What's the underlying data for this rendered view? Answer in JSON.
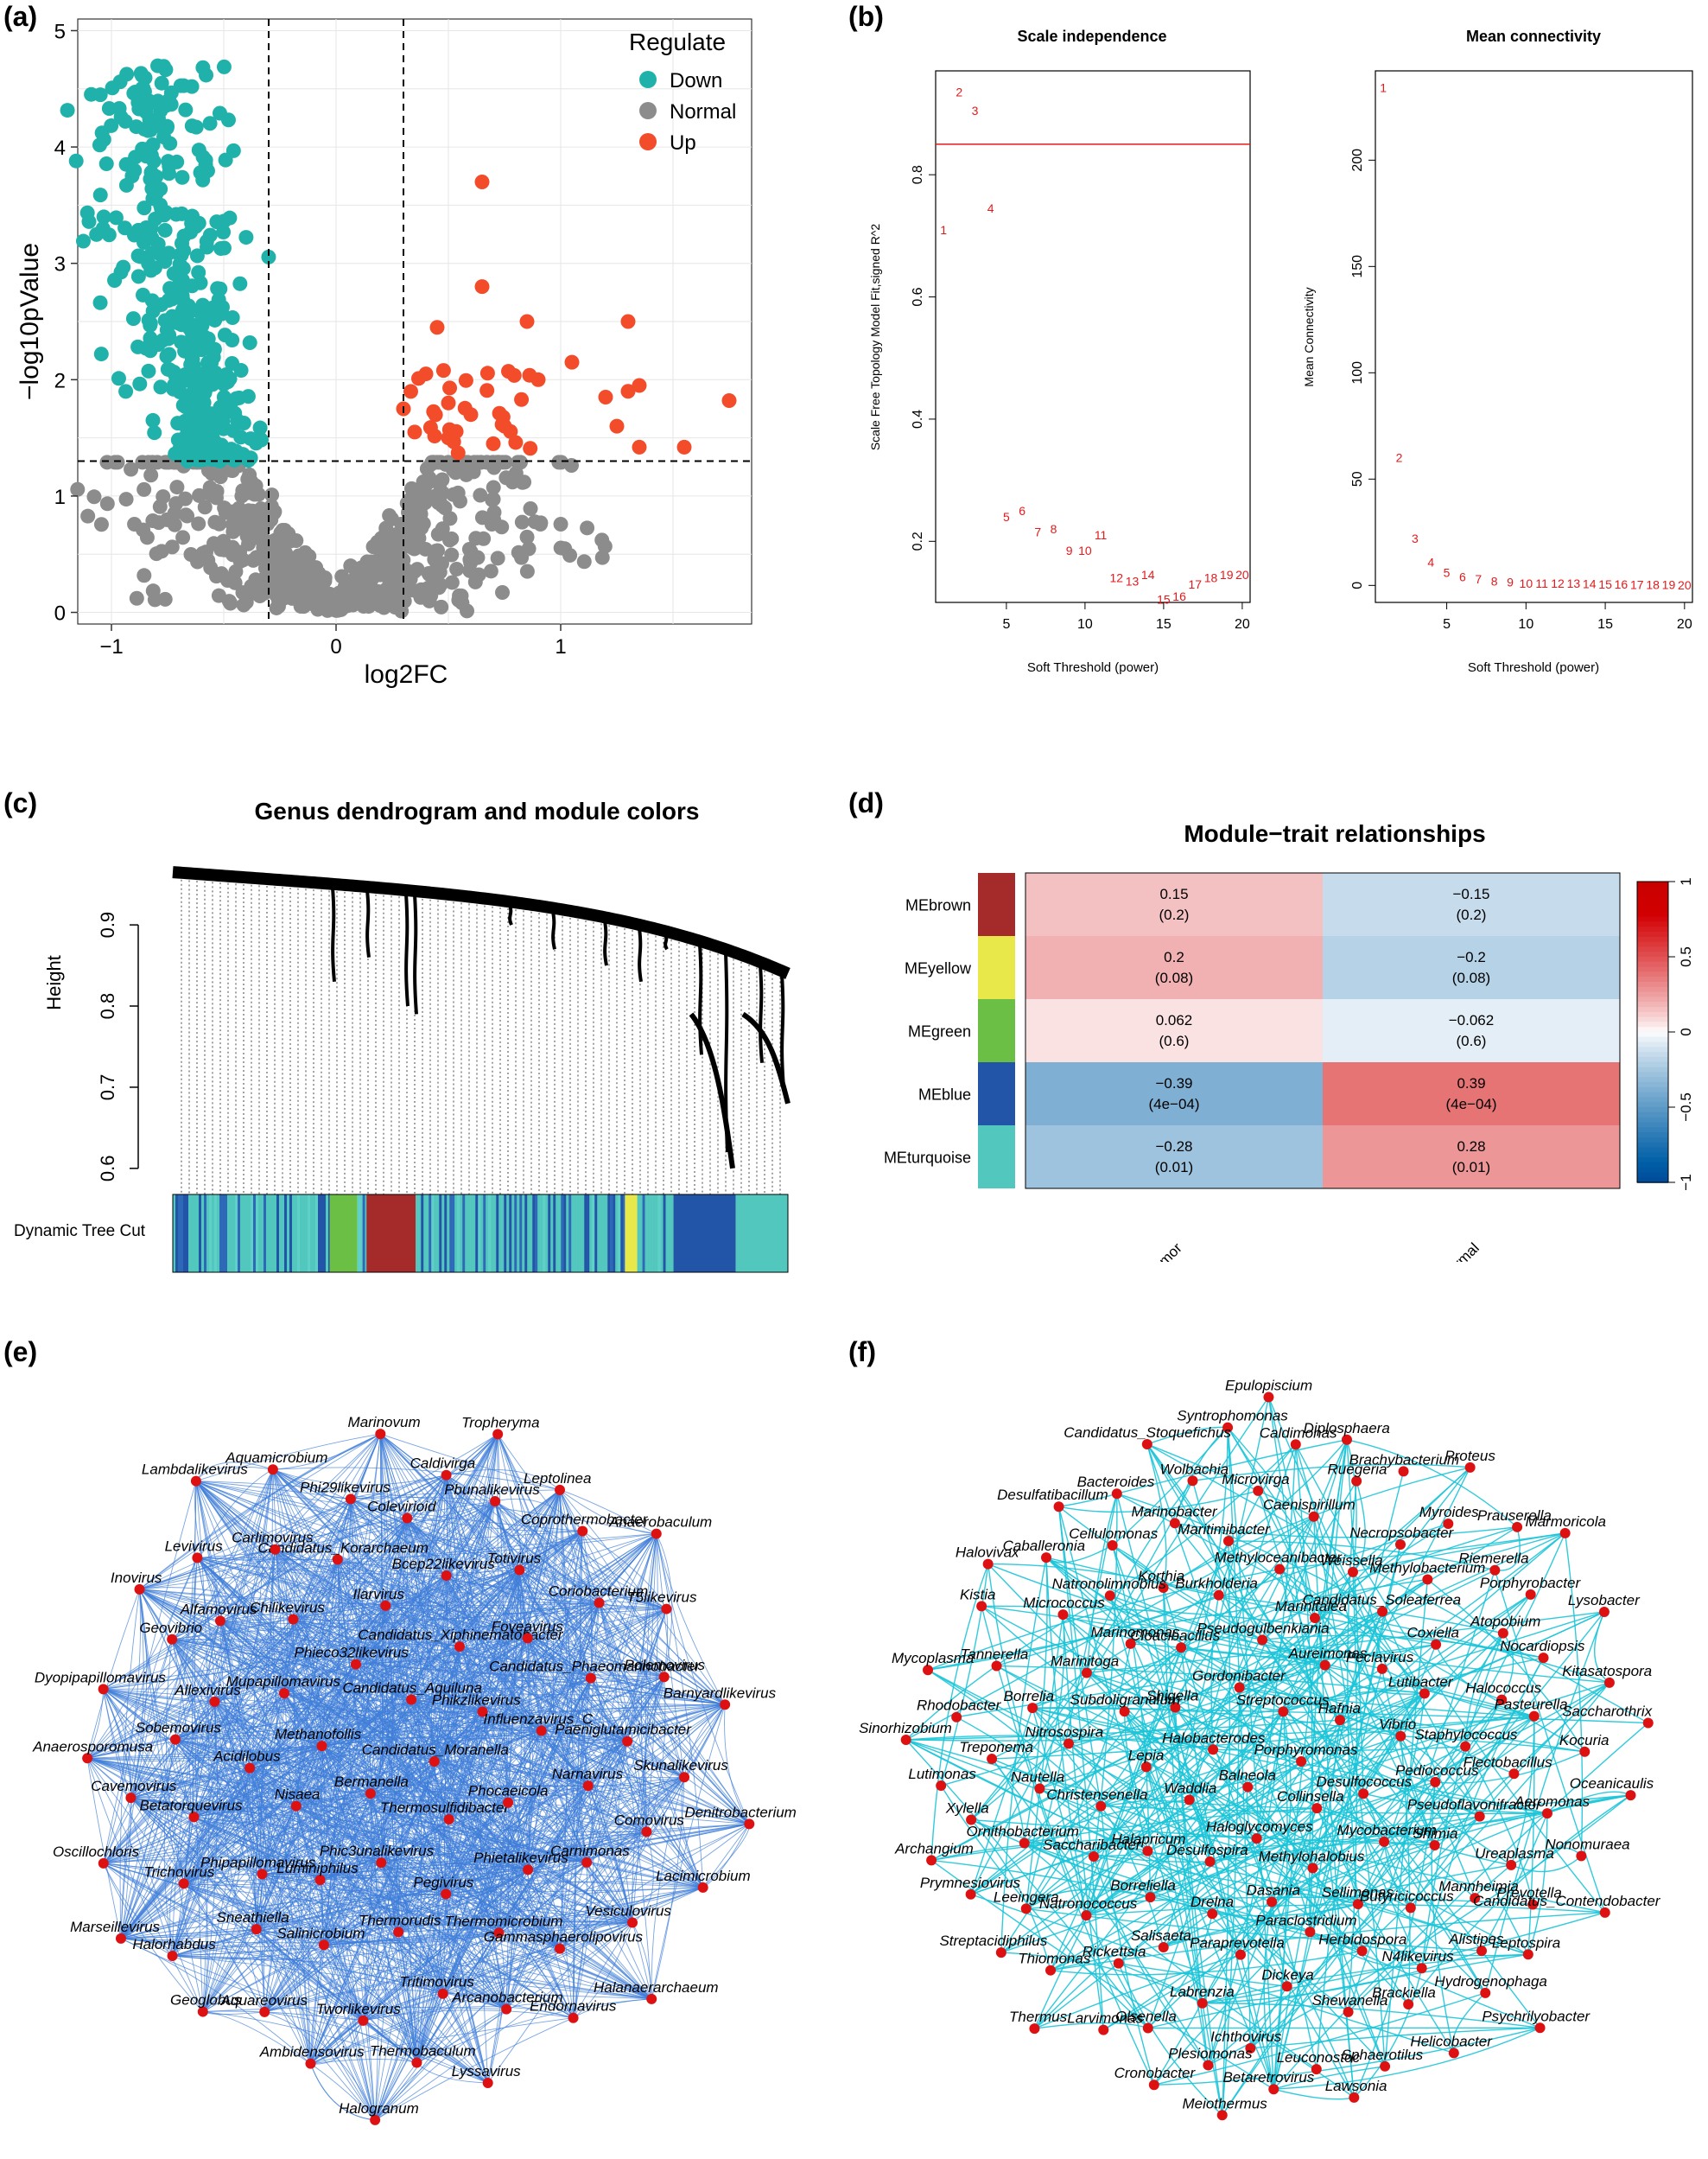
{
  "panels": {
    "a": "(a)",
    "b": "(b)",
    "c": "(c)",
    "d": "(d)",
    "e": "(e)",
    "f": "(f)"
  },
  "colors": {
    "down": "#20B2AA",
    "normal": "#8C8C8C",
    "up": "#F24C2A",
    "sft_red": "#E31A1C",
    "net_e_edge": "#3E7DD8",
    "net_f_edge": "#19C4D8",
    "node": "#DD1111",
    "hm_neg": "#2C7BB6",
    "hm_pos": "#D7191C"
  },
  "chart_data": [
    {
      "id": "a",
      "type": "scatter",
      "xlabel": "log2FC",
      "ylabel": "−log10pValue",
      "xlim": [
        -1.15,
        1.85
      ],
      "ylim": [
        -0.1,
        5.1
      ],
      "xticks": [
        -1,
        0,
        1
      ],
      "xtick_labels": [
        "−1",
        "0",
        "1"
      ],
      "yticks": [
        0,
        1,
        2,
        3,
        4,
        5
      ],
      "ytick_labels": [
        "0",
        "1",
        "2",
        "3",
        "4",
        "5"
      ],
      "thresholds": {
        "x": [
          -0.3,
          0.3
        ],
        "y": 1.3
      },
      "legend": {
        "title": "Regulate",
        "entries": [
          "Down",
          "Normal",
          "Up"
        ],
        "position": "top-right"
      },
      "points_summary": {
        "down_count_est": 420,
        "normal_count_est": 650,
        "up_count_est": 48
      },
      "up_points": [
        [
          0.65,
          3.7
        ],
        [
          0.65,
          2.8
        ],
        [
          1.3,
          2.5
        ],
        [
          0.85,
          2.5
        ],
        [
          0.45,
          2.45
        ],
        [
          1.05,
          2.15
        ],
        [
          0.4,
          2.05
        ],
        [
          0.9,
          2.0
        ],
        [
          1.35,
          1.95
        ],
        [
          1.3,
          1.9
        ],
        [
          1.75,
          1.82
        ],
        [
          1.2,
          1.85
        ],
        [
          0.5,
          1.8
        ],
        [
          0.3,
          1.75
        ],
        [
          0.6,
          1.7
        ],
        [
          1.25,
          1.6
        ],
        [
          0.75,
          1.6
        ],
        [
          1.55,
          1.42
        ],
        [
          1.35,
          1.42
        ],
        [
          0.7,
          1.45
        ],
        [
          0.5,
          1.5
        ],
        [
          0.35,
          1.55
        ]
      ]
    },
    {
      "id": "b1",
      "type": "scatter",
      "title": "Scale independence",
      "xlabel": "Soft Threshold (power)",
      "ylabel": "Scale Free Topology Model Fit,signed R^2",
      "xlim": [
        0.5,
        20.5
      ],
      "ylim": [
        0.1,
        0.97
      ],
      "xticks": [
        5,
        10,
        15,
        20
      ],
      "yticks": [
        0.2,
        0.4,
        0.6,
        0.8
      ],
      "cutoff": 0.85,
      "x": [
        1,
        2,
        3,
        4,
        5,
        6,
        7,
        8,
        9,
        10,
        11,
        12,
        13,
        14,
        15,
        16,
        17,
        18,
        19,
        20
      ],
      "y": [
        0.71,
        0.935,
        0.905,
        0.745,
        0.24,
        0.25,
        0.215,
        0.22,
        0.185,
        0.185,
        0.21,
        0.14,
        0.135,
        0.145,
        0.105,
        0.11,
        0.13,
        0.14,
        0.145,
        0.145
      ]
    },
    {
      "id": "b2",
      "type": "scatter",
      "title": "Mean connectivity",
      "xlabel": "Soft Threshold (power)",
      "ylabel": "Mean Connectivity",
      "xlim": [
        0.5,
        20.5
      ],
      "ylim": [
        -8,
        242
      ],
      "xticks": [
        5,
        10,
        15,
        20
      ],
      "yticks": [
        0,
        50,
        100,
        150,
        200
      ],
      "x": [
        1,
        2,
        3,
        4,
        5,
        6,
        7,
        8,
        9,
        10,
        11,
        12,
        13,
        14,
        15,
        16,
        17,
        18,
        19,
        20
      ],
      "y": [
        234,
        60,
        22,
        11,
        6,
        4,
        3,
        2,
        1.5,
        1,
        1,
        1,
        1,
        0.8,
        0.6,
        0.5,
        0.4,
        0.3,
        0.3,
        0.2
      ]
    },
    {
      "id": "c",
      "type": "dendrogram",
      "title": "Genus dendrogram and module colors",
      "ylabel": "Height",
      "ylim": [
        0.57,
        0.98
      ],
      "yticks": [
        0.6,
        0.7,
        0.8,
        0.9
      ],
      "colorbar_label": "Dynamic Tree Cut",
      "modules": [
        {
          "name": "turquoise/blue mix",
          "from": 0.0,
          "to": 0.255
        },
        {
          "name": "green",
          "from": 0.255,
          "to": 0.3
        },
        {
          "name": "turquoise/blue mix",
          "from": 0.3,
          "to": 0.315
        },
        {
          "name": "brown",
          "from": 0.315,
          "to": 0.395
        },
        {
          "name": "turquoise/blue mix",
          "from": 0.395,
          "to": 0.735
        },
        {
          "name": "yellow",
          "from": 0.735,
          "to": 0.755
        },
        {
          "name": "turquoise/blue mix",
          "from": 0.755,
          "to": 0.815
        },
        {
          "name": "blue",
          "from": 0.815,
          "to": 0.915
        },
        {
          "name": "turquoise",
          "from": 0.915,
          "to": 1.0
        }
      ]
    },
    {
      "id": "d",
      "type": "heatmap",
      "title": "Module−trait relationships",
      "rows": [
        "MEbrown",
        "MEyellow",
        "MEgreen",
        "MEblue",
        "MEturquoise"
      ],
      "row_colors": [
        "#A52A2A",
        "#E8E84A",
        "#6CBF45",
        "#2255A8",
        "#52C7BE"
      ],
      "cols": [
        "Tumor",
        "Normal"
      ],
      "values": [
        [
          0.15,
          -0.15
        ],
        [
          0.2,
          -0.2
        ],
        [
          0.062,
          -0.062
        ],
        [
          -0.39,
          0.39
        ],
        [
          -0.28,
          0.28
        ]
      ],
      "cells": [
        [
          "0.15",
          "−0.15"
        ],
        [
          "0.2",
          "−0.2"
        ],
        [
          "0.062",
          "−0.062"
        ],
        [
          "−0.39",
          "0.39"
        ],
        [
          "−0.28",
          "0.28"
        ]
      ],
      "pvalues": [
        [
          "(0.2)",
          "(0.2)"
        ],
        [
          "(0.08)",
          "(0.08)"
        ],
        [
          "(0.6)",
          "(0.6)"
        ],
        [
          "(4e−04)",
          "(4e−04)"
        ],
        [
          "(0.01)",
          "(0.01)"
        ]
      ],
      "colorbar": {
        "range": [
          -1,
          1
        ],
        "ticks": [
          -1,
          -0.5,
          0,
          0.5,
          1
        ],
        "tick_labels": [
          "−1",
          "−0.5",
          "0",
          "0.5",
          "1"
        ]
      }
    }
  ],
  "network_e": {
    "nodes": [
      "Candidatus_Moranella",
      "Bermanella",
      "Candidatus_Aquiluna",
      "Thermosulfidibacter",
      "Methanofollis",
      "Phikzlikevirus",
      "Phic3unalikevirus",
      "Phieco32likevirus",
      "Phocaeicola",
      "Nisaea",
      "Candidatus_Xiphinematobacter",
      "Pegivirus",
      "Mupapillomavirus",
      "Influenzavirus_C",
      "Luminiphilus",
      "Ilarvirus",
      "Phietalikevirus",
      "Acidilobus",
      "Foveavirus",
      "Thermorudis",
      "Chilikevirus",
      "Narnavirus",
      "Phipapillomavirus",
      "Bcep22likevirus",
      "Thermomicrobium",
      "Allexivirus",
      "Candidatus_Phaeomarinobacter",
      "Salinicrobium",
      "Candidatus_Korarchaeum",
      "Carnimonas",
      "Betatorquevirus",
      "Totivirus",
      "Tritimovirus",
      "Alfamovirus",
      "Paeniglutamicibacter",
      "Sneathiella",
      "Colevirioid",
      "Gammasphaerolipovirus",
      "Sobemovirus",
      "Coriobacterium",
      "Tworlikevirus",
      "Carlimovirus",
      "Comovirus",
      "Trichovirus",
      "Pbunalikevirus",
      "Arcanobacterium",
      "Geovibrio",
      "Polemovirus",
      "Aquareovirus",
      "Phi29likevirus",
      "Vesiculovirus",
      "Cavemovirus",
      "Coprothermobacter",
      "Thermobaculum",
      "Levivirus",
      "Skunalikevirus",
      "Halorhabdus",
      "Caldivirga",
      "Endornavirus",
      "Dyopipapillomavirus",
      "T5likevirus",
      "Ambidensovirus",
      "Aquamicrobium",
      "Lacimicrobium",
      "Oscillochloris",
      "Leptolinea",
      "Lyssavirus",
      "Inovirus",
      "Barnyardlikevirus",
      "Geoglobus",
      "Marinovum",
      "Halanaerarchaeum",
      "Anaerosporomusa",
      "Anaerobaculum",
      "Halogranum",
      "Lambdalikevirus",
      "Denitrobacterium",
      "Marseillevirus",
      "Tropheryma"
    ]
  },
  "network_f": {
    "nodes": [
      "Porphyromonas",
      "Balneola",
      "Streptococcus",
      "Collinsella",
      "Halobacterodes",
      "Hafnia",
      "Haloglycomyces",
      "Gordonibacter",
      "Desulfococcus",
      "Waddlia",
      "Aureimonas",
      "Methylohalobius",
      "Shigella",
      "Vibrio",
      "Desulfospira",
      "Pseudogulbenkiania",
      "Mycobacterium",
      "Lepia",
      "Peclavirus",
      "Dasania",
      "Cloacibacillus",
      "Pediococcus",
      "Halapricum",
      "Marinitalea",
      "Sellimonas",
      "Subdoligranulum",
      "Lutibacter",
      "Drelna",
      "Burkholderia",
      "Shimia",
      "Christensenella",
      "Candidatus_Soleaferrea",
      "Paraclostridium",
      "Marinomonas",
      "Staphylococcus",
      "Borreliella",
      "Methyloceanibacter",
      "Butyricicoccus",
      "Nitrosospira",
      "Coxiella",
      "Paraprevotella",
      "Korthia",
      "Pseudoflavonifractor",
      "Saccharibacter",
      "Weissella",
      "Herbidospora",
      "Marinitoga",
      "Halococcus",
      "Salisaeta",
      "Maritimibacter",
      "Mannheimia",
      "Nautella",
      "Methylobacterium",
      "Dickeya",
      "Natronolimnobius",
      "Flectobacillus",
      "Natronococcus",
      "Caenispirillum",
      "N4likevirus",
      "Borrelia",
      "Atopobium",
      "Labrenzia",
      "Marinobacter",
      "Ureaplasma",
      "Ornithobacterium",
      "Necropsobacter",
      "Shewanella",
      "Micrococcus",
      "Pasteurella",
      "Rickettsia",
      "Microvirga",
      "Alistipes",
      "Treponema",
      "Riemerella",
      "Ichthovirus",
      "Cellulomonas",
      "Aeromonas",
      "Leeingera",
      "Ruegeria",
      "Brackiella",
      "Tannerella",
      "Nocardiopsis",
      "Olsenella",
      "Wolbachia",
      "Prevotella",
      "Xylella",
      "Myroides",
      "Leuconostoc",
      "Caballeronia",
      "Kocuria",
      "Thiomonas",
      "Caldimonas",
      "Hydrogenophaga",
      "Rhodobacter",
      "Porphyrobacter",
      "Plesiomonas",
      "Bacteroides",
      "Nonomuraea",
      "Prymnesiovirus",
      "Brachybacterium",
      "Sphaerotilus",
      "Kistia",
      "Kitasatospora",
      "Larvimonas",
      "Syntrophomonas",
      "Leptospira",
      "Lutimonas",
      "Prauserella",
      "Betaretrovirus",
      "Desulfatibacillum",
      "Oceanicaulis",
      "Streptacidiphilus",
      "Diplosphaera",
      "Helicobacter",
      "Mycoplasma",
      "Lysobacter",
      "Cronobacter",
      "Candidatus_Stoquefichus",
      "Candidatus_Contendobacter",
      "Archangium",
      "Proteus",
      "Lawsonia",
      "Halovivax",
      "Saccharothrix",
      "Thermus",
      "Epulopiscium",
      "Psychrilyobacter",
      "Sinorhizobium",
      "Marmoricola",
      "Meiothermus"
    ]
  }
}
